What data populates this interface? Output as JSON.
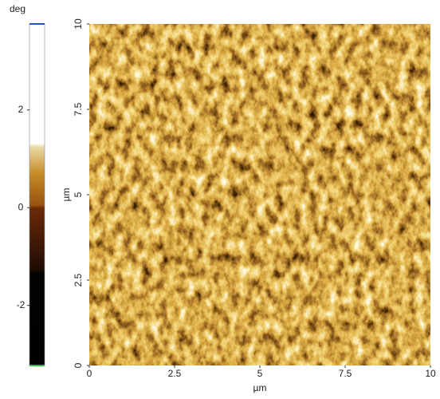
{
  "chart_data": {
    "type": "heatmap",
    "colorbar": {
      "label": "deg",
      "lim": [
        -3.23,
        3.76
      ],
      "ticks": [
        -2,
        0,
        2
      ]
    },
    "xlabel": "µm",
    "ylabel": "µm",
    "xlim": [
      0,
      10
    ],
    "ylim": [
      0,
      10
    ],
    "xticks": [
      0,
      2.5,
      5,
      7.5,
      10
    ],
    "yticks": [
      0,
      2.5,
      5,
      7.5,
      10
    ]
  }
}
